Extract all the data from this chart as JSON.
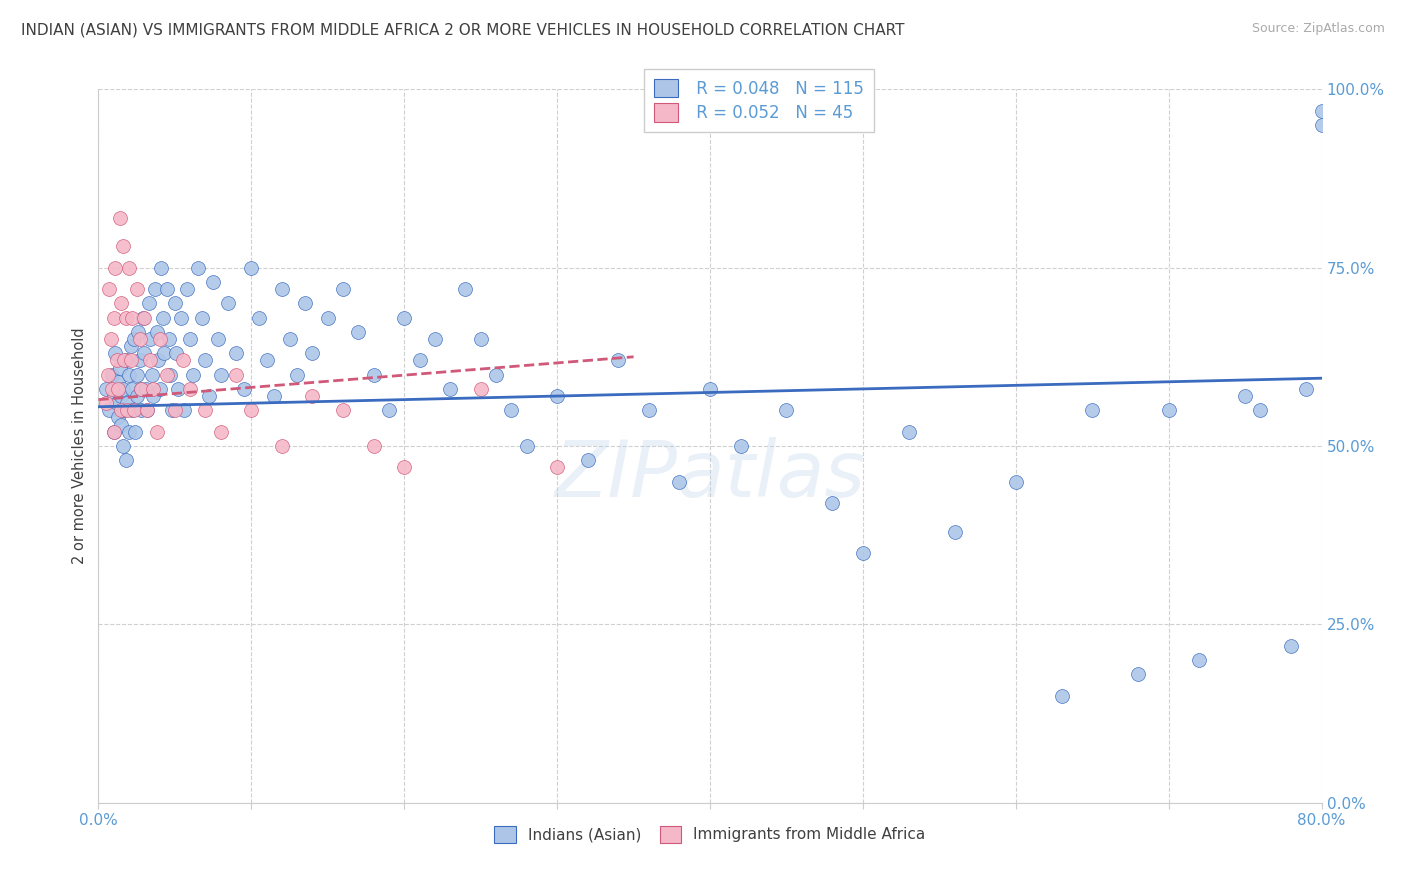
{
  "title": "INDIAN (ASIAN) VS IMMIGRANTS FROM MIDDLE AFRICA 2 OR MORE VEHICLES IN HOUSEHOLD CORRELATION CHART",
  "source": "Source: ZipAtlas.com",
  "ylabel": "2 or more Vehicles in Household",
  "xlim": [
    0.0,
    0.8
  ],
  "ylim": [
    0.0,
    1.0
  ],
  "yticklabels_right": [
    "0.0%",
    "25.0%",
    "50.0%",
    "75.0%",
    "100.0%"
  ],
  "legend1_R": "0.048",
  "legend1_N": "115",
  "legend2_R": "0.052",
  "legend2_N": "45",
  "legend1_label": "Indians (Asian)",
  "legend2_label": "Immigrants from Middle Africa",
  "color_blue": "#adc6e8",
  "color_pink": "#f5b8c8",
  "line_blue": "#3a6bbf",
  "line_pink": "#d05878",
  "axis_color": "#5b9bd5",
  "blue_scatter_x": [
    0.005,
    0.007,
    0.009,
    0.01,
    0.01,
    0.011,
    0.012,
    0.013,
    0.013,
    0.014,
    0.015,
    0.015,
    0.016,
    0.016,
    0.017,
    0.018,
    0.018,
    0.019,
    0.02,
    0.02,
    0.021,
    0.022,
    0.022,
    0.023,
    0.024,
    0.025,
    0.025,
    0.026,
    0.027,
    0.028,
    0.028,
    0.029,
    0.03,
    0.031,
    0.032,
    0.033,
    0.034,
    0.035,
    0.036,
    0.037,
    0.038,
    0.039,
    0.04,
    0.041,
    0.042,
    0.043,
    0.045,
    0.046,
    0.047,
    0.048,
    0.05,
    0.051,
    0.052,
    0.054,
    0.056,
    0.058,
    0.06,
    0.062,
    0.065,
    0.068,
    0.07,
    0.072,
    0.075,
    0.078,
    0.08,
    0.085,
    0.09,
    0.095,
    0.1,
    0.105,
    0.11,
    0.115,
    0.12,
    0.125,
    0.13,
    0.135,
    0.14,
    0.15,
    0.16,
    0.17,
    0.18,
    0.19,
    0.2,
    0.21,
    0.22,
    0.23,
    0.24,
    0.25,
    0.26,
    0.27,
    0.28,
    0.3,
    0.32,
    0.34,
    0.36,
    0.38,
    0.4,
    0.42,
    0.45,
    0.48,
    0.5,
    0.53,
    0.56,
    0.6,
    0.63,
    0.65,
    0.68,
    0.7,
    0.72,
    0.75,
    0.76,
    0.78,
    0.79,
    0.8,
    0.8
  ],
  "blue_scatter_y": [
    0.58,
    0.55,
    0.6,
    0.57,
    0.52,
    0.63,
    0.56,
    0.59,
    0.54,
    0.61,
    0.57,
    0.53,
    0.58,
    0.5,
    0.55,
    0.62,
    0.48,
    0.56,
    0.6,
    0.52,
    0.64,
    0.58,
    0.55,
    0.65,
    0.52,
    0.6,
    0.57,
    0.66,
    0.62,
    0.58,
    0.55,
    0.68,
    0.63,
    0.58,
    0.55,
    0.7,
    0.65,
    0.6,
    0.57,
    0.72,
    0.66,
    0.62,
    0.58,
    0.75,
    0.68,
    0.63,
    0.72,
    0.65,
    0.6,
    0.55,
    0.7,
    0.63,
    0.58,
    0.68,
    0.55,
    0.72,
    0.65,
    0.6,
    0.75,
    0.68,
    0.62,
    0.57,
    0.73,
    0.65,
    0.6,
    0.7,
    0.63,
    0.58,
    0.75,
    0.68,
    0.62,
    0.57,
    0.72,
    0.65,
    0.6,
    0.7,
    0.63,
    0.68,
    0.72,
    0.66,
    0.6,
    0.55,
    0.68,
    0.62,
    0.65,
    0.58,
    0.72,
    0.65,
    0.6,
    0.55,
    0.5,
    0.57,
    0.48,
    0.62,
    0.55,
    0.45,
    0.58,
    0.5,
    0.55,
    0.42,
    0.35,
    0.52,
    0.38,
    0.45,
    0.15,
    0.55,
    0.18,
    0.55,
    0.2,
    0.57,
    0.55,
    0.22,
    0.58,
    0.97,
    0.95
  ],
  "pink_scatter_x": [
    0.005,
    0.006,
    0.007,
    0.008,
    0.009,
    0.01,
    0.01,
    0.011,
    0.012,
    0.013,
    0.014,
    0.015,
    0.015,
    0.016,
    0.017,
    0.018,
    0.019,
    0.02,
    0.021,
    0.022,
    0.023,
    0.025,
    0.027,
    0.028,
    0.03,
    0.032,
    0.034,
    0.036,
    0.038,
    0.04,
    0.045,
    0.05,
    0.055,
    0.06,
    0.07,
    0.08,
    0.09,
    0.1,
    0.12,
    0.14,
    0.16,
    0.18,
    0.2,
    0.25,
    0.3
  ],
  "pink_scatter_y": [
    0.56,
    0.6,
    0.72,
    0.65,
    0.58,
    0.68,
    0.52,
    0.75,
    0.62,
    0.58,
    0.82,
    0.7,
    0.55,
    0.78,
    0.62,
    0.68,
    0.55,
    0.75,
    0.62,
    0.68,
    0.55,
    0.72,
    0.65,
    0.58,
    0.68,
    0.55,
    0.62,
    0.58,
    0.52,
    0.65,
    0.6,
    0.55,
    0.62,
    0.58,
    0.55,
    0.52,
    0.6,
    0.55,
    0.5,
    0.57,
    0.55,
    0.5,
    0.47,
    0.58,
    0.47
  ]
}
